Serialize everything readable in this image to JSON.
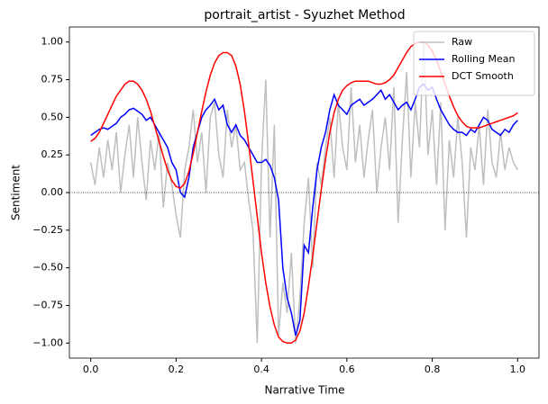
{
  "chart_data": {
    "type": "line",
    "title": "portrait_artist - Syuzhet Method",
    "xlabel": "Narrative Time",
    "ylabel": "Sentiment",
    "xlim": [
      -0.05,
      1.05
    ],
    "ylim": [
      -1.1,
      1.1
    ],
    "xticks": [
      {
        "value": 0,
        "label": "0.0"
      },
      {
        "value": 0.2,
        "label": "0.2"
      },
      {
        "value": 0.4,
        "label": "0.4"
      },
      {
        "value": 0.6,
        "label": "0.6"
      },
      {
        "value": 0.8,
        "label": "0.8"
      },
      {
        "value": 1,
        "label": "1.0"
      }
    ],
    "yticks": [
      {
        "value": -1,
        "label": "−1.00"
      },
      {
        "value": -0.75,
        "label": "−0.75"
      },
      {
        "value": -0.5,
        "label": "−0.50"
      },
      {
        "value": -0.25,
        "label": "−0.25"
      },
      {
        "value": 0,
        "label": "0.00"
      },
      {
        "value": 0.25,
        "label": "0.25"
      },
      {
        "value": 0.5,
        "label": "0.50"
      },
      {
        "value": 0.75,
        "label": "0.75"
      },
      {
        "value": 1,
        "label": "1.00"
      }
    ],
    "axhline": 0,
    "legend": "upper right",
    "x": [
      0,
      0.01,
      0.02,
      0.03,
      0.04,
      0.05,
      0.06,
      0.07,
      0.08,
      0.09,
      0.1,
      0.11,
      0.12,
      0.13,
      0.14,
      0.15,
      0.16,
      0.17,
      0.18,
      0.19,
      0.2,
      0.21,
      0.22,
      0.23,
      0.24,
      0.25,
      0.26,
      0.27,
      0.28,
      0.29,
      0.3,
      0.31,
      0.32,
      0.33,
      0.34,
      0.35,
      0.36,
      0.37,
      0.38,
      0.39,
      0.4,
      0.41,
      0.42,
      0.43,
      0.44,
      0.45,
      0.46,
      0.47,
      0.48,
      0.49,
      0.5,
      0.51,
      0.52,
      0.53,
      0.54,
      0.55,
      0.56,
      0.57,
      0.58,
      0.59,
      0.6,
      0.61,
      0.62,
      0.63,
      0.64,
      0.65,
      0.66,
      0.67,
      0.68,
      0.69,
      0.7,
      0.71,
      0.72,
      0.73,
      0.74,
      0.75,
      0.76,
      0.77,
      0.78,
      0.79,
      0.8,
      0.81,
      0.82,
      0.83,
      0.84,
      0.85,
      0.86,
      0.87,
      0.88,
      0.89,
      0.9,
      0.91,
      0.92,
      0.93,
      0.94,
      0.95,
      0.96,
      0.97,
      0.98,
      0.99,
      1
    ],
    "series": [
      {
        "name": "Raw",
        "color": "#bfbfbf",
        "width": 1.5,
        "values": [
          0.2,
          0.05,
          0.3,
          0.1,
          0.35,
          0.15,
          0.4,
          0.0,
          0.25,
          0.45,
          0.1,
          0.5,
          0.2,
          -0.05,
          0.35,
          0.15,
          0.4,
          -0.1,
          0.2,
          0.05,
          -0.15,
          -0.3,
          0.15,
          0.3,
          0.55,
          0.2,
          0.4,
          0.0,
          0.5,
          0.6,
          0.25,
          0.1,
          0.55,
          0.3,
          0.45,
          0.15,
          0.2,
          -0.05,
          -0.25,
          -1.0,
          0.2,
          0.75,
          -0.3,
          0.45,
          -0.95,
          -0.6,
          -0.8,
          -0.4,
          -1.0,
          -0.7,
          -0.2,
          0.1,
          -0.5,
          0.2,
          0.05,
          0.3,
          0.5,
          0.1,
          0.6,
          0.3,
          0.15,
          0.7,
          0.2,
          0.45,
          0.1,
          0.35,
          0.55,
          0.0,
          0.3,
          0.5,
          0.15,
          0.7,
          -0.2,
          0.35,
          0.8,
          0.1,
          0.6,
          0.3,
          1.0,
          0.25,
          0.55,
          0.05,
          0.6,
          -0.25,
          0.35,
          0.1,
          0.5,
          0.2,
          -0.3,
          0.3,
          0.15,
          0.45,
          0.05,
          0.55,
          0.2,
          0.1,
          0.4,
          0.15,
          0.3,
          0.2,
          0.15
        ]
      },
      {
        "name": "Rolling Mean",
        "color": "#0000ff",
        "width": 1.5,
        "values": [
          0.38,
          0.4,
          0.42,
          0.43,
          0.42,
          0.44,
          0.46,
          0.5,
          0.52,
          0.55,
          0.56,
          0.54,
          0.52,
          0.48,
          0.5,
          0.45,
          0.4,
          0.35,
          0.3,
          0.2,
          0.15,
          0.0,
          -0.03,
          0.1,
          0.3,
          0.4,
          0.5,
          0.55,
          0.58,
          0.62,
          0.55,
          0.58,
          0.45,
          0.4,
          0.45,
          0.38,
          0.35,
          0.3,
          0.25,
          0.2,
          0.2,
          0.22,
          0.18,
          0.1,
          -0.05,
          -0.5,
          -0.7,
          -0.8,
          -0.95,
          -0.85,
          -0.35,
          -0.4,
          -0.1,
          0.15,
          0.3,
          0.4,
          0.55,
          0.65,
          0.58,
          0.55,
          0.52,
          0.58,
          0.6,
          0.62,
          0.58,
          0.6,
          0.62,
          0.65,
          0.68,
          0.62,
          0.65,
          0.6,
          0.55,
          0.58,
          0.6,
          0.55,
          0.62,
          0.7,
          0.72,
          0.68,
          0.7,
          0.62,
          0.55,
          0.5,
          0.45,
          0.42,
          0.4,
          0.4,
          0.38,
          0.42,
          0.4,
          0.45,
          0.5,
          0.48,
          0.42,
          0.4,
          0.38,
          0.42,
          0.4,
          0.45,
          0.48
        ]
      },
      {
        "name": "DCT Smooth",
        "color": "#ff0000",
        "width": 1.5,
        "values": [
          0.34,
          0.36,
          0.4,
          0.46,
          0.52,
          0.58,
          0.64,
          0.68,
          0.72,
          0.74,
          0.74,
          0.72,
          0.68,
          0.62,
          0.54,
          0.44,
          0.34,
          0.24,
          0.15,
          0.08,
          0.04,
          0.03,
          0.06,
          0.14,
          0.26,
          0.4,
          0.54,
          0.67,
          0.78,
          0.86,
          0.91,
          0.93,
          0.93,
          0.91,
          0.84,
          0.72,
          0.54,
          0.32,
          0.08,
          -0.16,
          -0.4,
          -0.6,
          -0.76,
          -0.88,
          -0.96,
          -0.99,
          -1.0,
          -1.0,
          -0.98,
          -0.92,
          -0.8,
          -0.62,
          -0.42,
          -0.2,
          0.02,
          0.22,
          0.4,
          0.53,
          0.62,
          0.68,
          0.71,
          0.73,
          0.74,
          0.74,
          0.74,
          0.74,
          0.73,
          0.72,
          0.72,
          0.73,
          0.75,
          0.78,
          0.83,
          0.88,
          0.93,
          0.97,
          0.99,
          1.0,
          1.0,
          0.98,
          0.94,
          0.88,
          0.8,
          0.72,
          0.64,
          0.57,
          0.51,
          0.47,
          0.44,
          0.43,
          0.43,
          0.43,
          0.44,
          0.45,
          0.46,
          0.47,
          0.48,
          0.49,
          0.5,
          0.51,
          0.53
        ]
      }
    ]
  }
}
